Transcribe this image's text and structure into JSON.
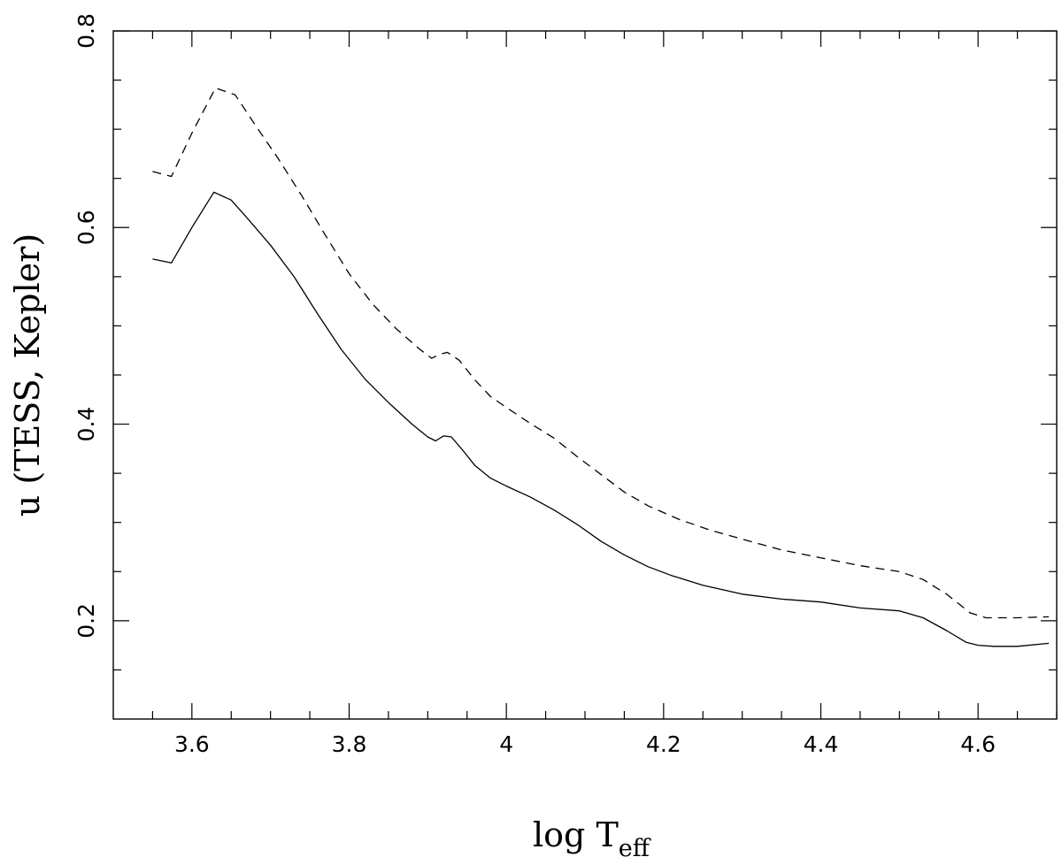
{
  "chart_data": {
    "type": "line",
    "xlabel": "log T",
    "xlabel_subscript": "eff",
    "ylabel": "u (TESS, Kepler)",
    "xlim": [
      3.5,
      4.7
    ],
    "ylim": [
      0.1,
      0.8
    ],
    "xticks": [
      3.6,
      3.8,
      4.0,
      4.2,
      4.4,
      4.6
    ],
    "xtick_labels": [
      "3.6",
      "3.8",
      "4",
      "4.2",
      "4.4",
      "4.6"
    ],
    "yticks": [
      0.2,
      0.4,
      0.6,
      0.8
    ],
    "ytick_labels": [
      "0.2",
      "0.4",
      "0.6",
      "0.8"
    ],
    "grid": false,
    "legend": "none",
    "series": [
      {
        "line_style": "solid",
        "x": [
          3.55,
          3.574,
          3.6,
          3.628,
          3.65,
          3.67,
          3.7,
          3.73,
          3.76,
          3.79,
          3.82,
          3.85,
          3.88,
          3.9,
          3.91,
          3.92,
          3.93,
          3.945,
          3.96,
          3.98,
          4.0,
          4.03,
          4.06,
          4.09,
          4.12,
          4.15,
          4.18,
          4.21,
          4.25,
          4.3,
          4.35,
          4.4,
          4.45,
          4.5,
          4.53,
          4.56,
          4.585,
          4.6,
          4.62,
          4.65,
          4.69
        ],
        "y": [
          0.568,
          0.564,
          0.6,
          0.636,
          0.628,
          0.61,
          0.582,
          0.55,
          0.512,
          0.476,
          0.446,
          0.422,
          0.4,
          0.387,
          0.383,
          0.388,
          0.387,
          0.373,
          0.358,
          0.345,
          0.337,
          0.326,
          0.313,
          0.298,
          0.281,
          0.267,
          0.255,
          0.246,
          0.236,
          0.227,
          0.222,
          0.219,
          0.213,
          0.21,
          0.203,
          0.19,
          0.178,
          0.175,
          0.174,
          0.174,
          0.177
        ]
      },
      {
        "line_style": "dashed",
        "x": [
          3.55,
          3.574,
          3.6,
          3.63,
          3.655,
          3.68,
          3.71,
          3.74,
          3.77,
          3.8,
          3.83,
          3.86,
          3.89,
          3.905,
          3.915,
          3.925,
          3.94,
          3.96,
          3.98,
          4.0,
          4.03,
          4.06,
          4.09,
          4.12,
          4.15,
          4.18,
          4.22,
          4.26,
          4.3,
          4.35,
          4.4,
          4.45,
          4.5,
          4.53,
          4.56,
          4.59,
          4.61,
          4.65,
          4.69
        ],
        "y": [
          0.657,
          0.652,
          0.696,
          0.742,
          0.735,
          0.705,
          0.67,
          0.632,
          0.592,
          0.553,
          0.522,
          0.497,
          0.476,
          0.467,
          0.471,
          0.473,
          0.465,
          0.445,
          0.428,
          0.417,
          0.401,
          0.386,
          0.367,
          0.349,
          0.331,
          0.317,
          0.303,
          0.292,
          0.283,
          0.272,
          0.264,
          0.256,
          0.25,
          0.242,
          0.227,
          0.208,
          0.203,
          0.203,
          0.204
        ]
      }
    ]
  }
}
